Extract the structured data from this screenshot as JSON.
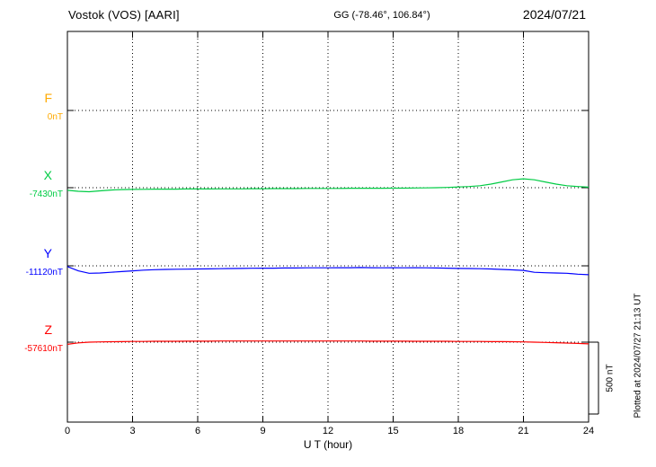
{
  "header": {
    "station_title": "Vostok (VOS)  [AARI]",
    "coordinates": "GG (-78.46°, 106.84°)",
    "date": "2024/07/21"
  },
  "chart_data": {
    "type": "line",
    "title": "Vostok (VOS) [AARI] magnetogram for 2024/07/21",
    "xlabel": "U T (hour)",
    "x_range": [
      0,
      24
    ],
    "x_ticks": [
      0,
      3,
      6,
      9,
      12,
      15,
      18,
      21,
      24
    ],
    "grid": "dotted vertical lines every 3 hours; dotted horizontal baseline per component",
    "legend_position": "left-margin component labels",
    "scale_bar": {
      "label": "500 nT",
      "nT": 500
    },
    "plotted_note": "Plotted at 2024/07/27 21:13 UT",
    "y_unit": "nT deviation from component baseline",
    "sample_step_hours": 0.5,
    "series": [
      {
        "name": "F",
        "color": "#ffaa00",
        "baseline_label": "0nT",
        "baseline_nT": 0,
        "values": []
      },
      {
        "name": "X",
        "color": "#00cc44",
        "baseline_label": "-7430nT",
        "baseline_nT": -7430,
        "values": [
          -18,
          -25,
          -28,
          -22,
          -16,
          -13,
          -12,
          -11,
          -10,
          -10,
          -10,
          -9,
          -9,
          -9,
          -8,
          -8,
          -8,
          -7,
          -7,
          -6,
          -6,
          -6,
          -5,
          -5,
          -5,
          -5,
          -4,
          -4,
          -4,
          -4,
          -3,
          -3,
          -2,
          -1,
          0,
          2,
          5,
          8,
          14,
          25,
          40,
          55,
          62,
          55,
          40,
          25,
          14,
          8,
          4
        ]
      },
      {
        "name": "Y",
        "color": "#0000ff",
        "baseline_label": "-11120nT",
        "baseline_nT": -11120,
        "values": [
          -5,
          -35,
          -52,
          -50,
          -45,
          -40,
          -35,
          -30,
          -27,
          -25,
          -24,
          -23,
          -22,
          -21,
          -20,
          -19,
          -18,
          -17,
          -16,
          -16,
          -15,
          -15,
          -14,
          -14,
          -14,
          -13,
          -13,
          -12,
          -13,
          -14,
          -13,
          -14,
          -13,
          -14,
          -15,
          -16,
          -18,
          -19,
          -20,
          -22,
          -25,
          -28,
          -32,
          -45,
          -48,
          -50,
          -52,
          -58,
          -62
        ]
      },
      {
        "name": "Z",
        "color": "#ff0000",
        "baseline_label": "-57610nT",
        "baseline_nT": -57610,
        "values": [
          -15,
          -5,
          0,
          2,
          3,
          4,
          5,
          5,
          6,
          6,
          6,
          7,
          7,
          7,
          8,
          8,
          8,
          8,
          8,
          8,
          8,
          8,
          8,
          8,
          8,
          8,
          8,
          8,
          7,
          7,
          7,
          7,
          6,
          6,
          6,
          6,
          5,
          5,
          5,
          4,
          4,
          3,
          2,
          0,
          -2,
          -4,
          -6,
          -9,
          -12
        ]
      }
    ]
  }
}
